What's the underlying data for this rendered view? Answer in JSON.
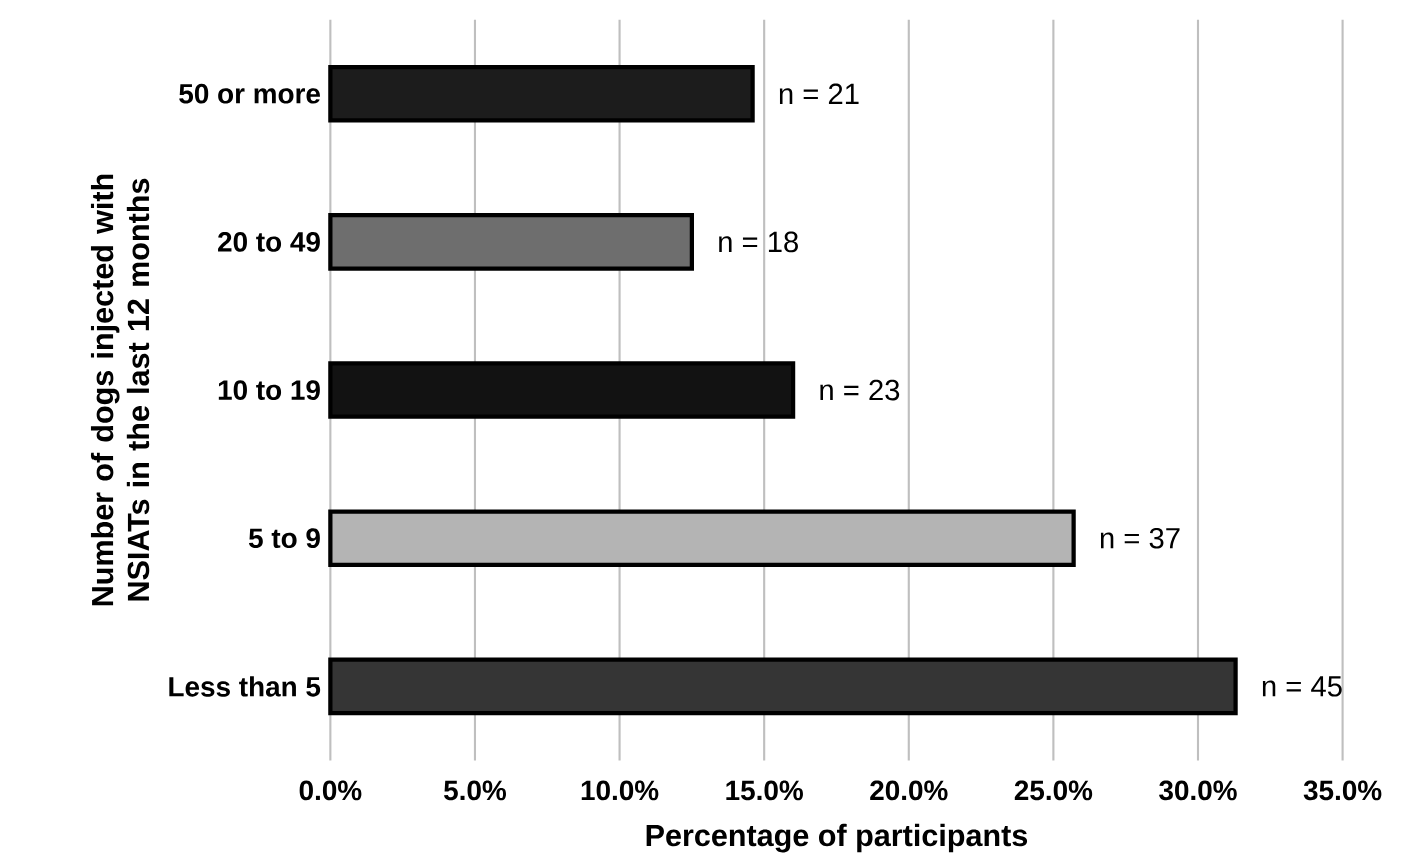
{
  "chart_data": {
    "type": "bar",
    "orientation": "horizontal",
    "xlabel": "Percentage of participants",
    "ylabel": "Number of dogs injected with NSIATs in the last 12 months",
    "categories": [
      "50 or more",
      "20 to 49",
      "10 to 19",
      "5 to 9",
      "Less than 5"
    ],
    "values": [
      14.6,
      12.5,
      16.0,
      25.7,
      31.3
    ],
    "colors": [
      "#1c1c1c",
      "#6e6e6e",
      "#121212",
      "#b4b4b4",
      "#353535"
    ],
    "annotations": [
      {
        "text": "n = 21",
        "x": 14.6,
        "y": "50 or more"
      },
      {
        "text": "n = 18",
        "x": 12.5,
        "y": "20 to 49"
      },
      {
        "text": "n = 23",
        "x": 16.0,
        "y": "10 to 19"
      },
      {
        "text": "n = 37",
        "x": 25.7,
        "y": "5 to 9"
      },
      {
        "text": "n = 45",
        "x": 31.3,
        "y": "Less than 5"
      }
    ],
    "xlim": [
      0,
      35
    ],
    "xticks": [
      {
        "value": 0,
        "label": "0.0%"
      },
      {
        "value": 5,
        "label": "5.0%"
      },
      {
        "value": 10,
        "label": "10.0%"
      },
      {
        "value": 15,
        "label": "15.0%"
      },
      {
        "value": 20,
        "label": "20.0%"
      },
      {
        "value": 25,
        "label": "25.0%"
      },
      {
        "value": 30,
        "label": "30.0%"
      },
      {
        "value": 35,
        "label": "35.0%"
      }
    ],
    "grid": "x"
  }
}
